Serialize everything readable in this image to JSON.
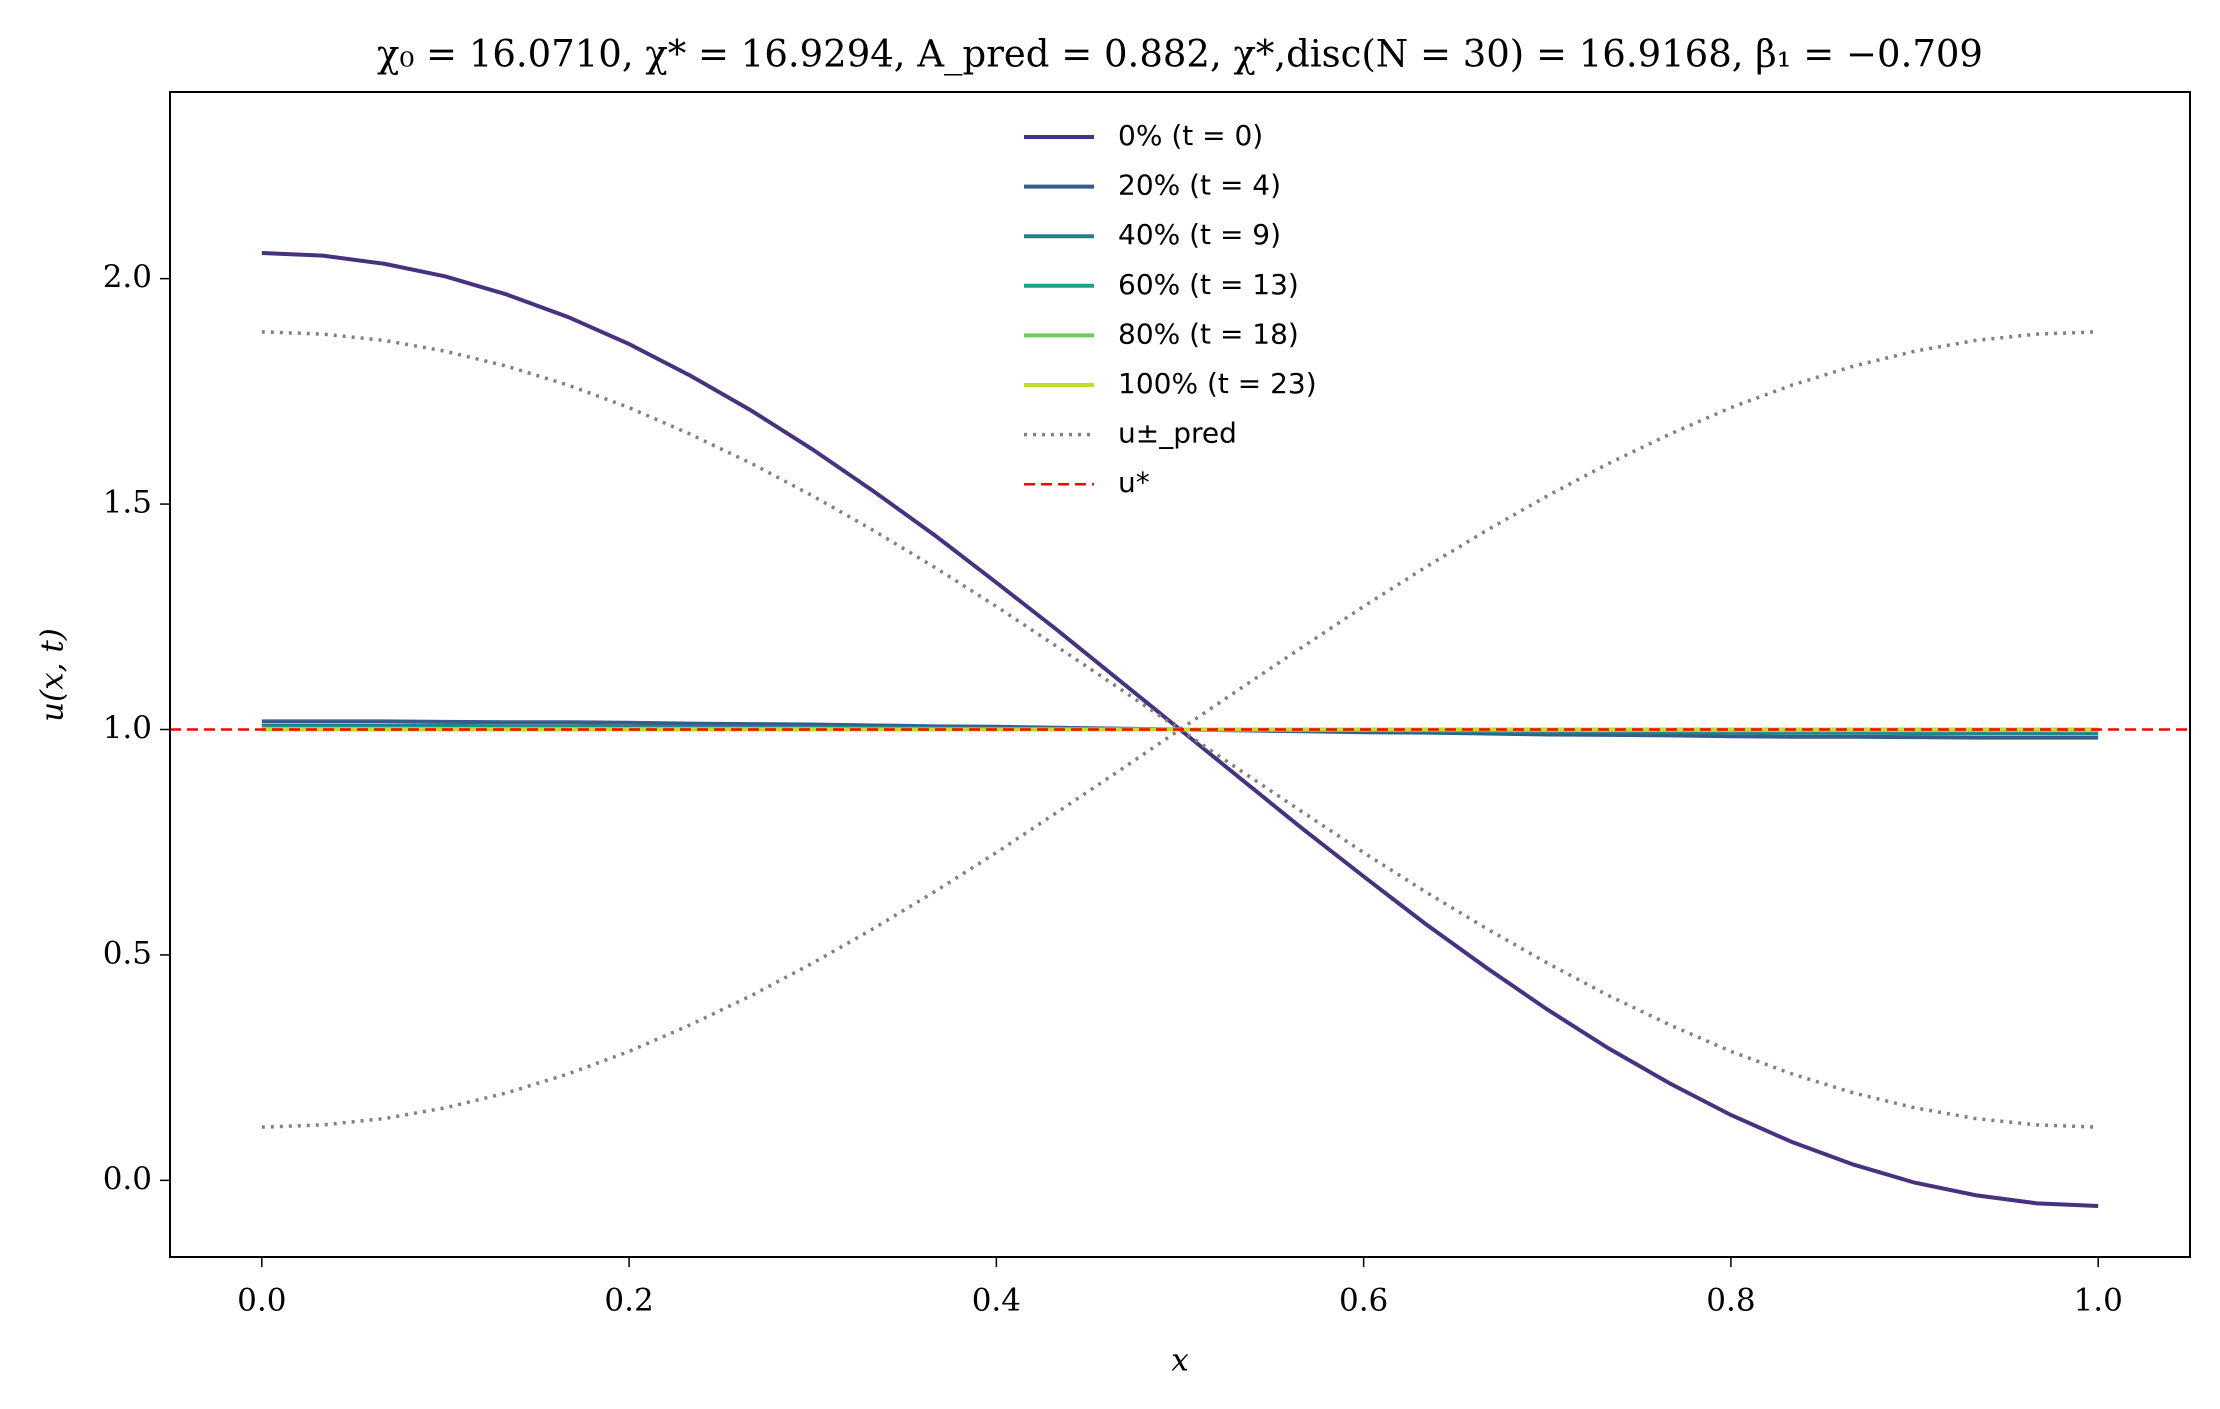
{
  "chart_data": {
    "type": "line",
    "title": "χ₀ = 16.0710,  χ* = 16.9294,  A_pred = 0.882,  χ*,disc(N = 30) = 16.9168,  β₁ = −0.709",
    "xlabel": "x",
    "ylabel": "u(x, t)",
    "x": [
      0,
      0.0333,
      0.0667,
      0.1,
      0.1333,
      0.1667,
      0.2,
      0.2333,
      0.2667,
      0.3,
      0.3333,
      0.3667,
      0.4,
      0.4333,
      0.4667,
      0.5,
      0.5333,
      0.5667,
      0.6,
      0.6333,
      0.6667,
      0.7,
      0.7333,
      0.7667,
      0.8,
      0.8333,
      0.8667,
      0.9,
      0.9333,
      0.9667,
      1
    ],
    "series": [
      {
        "name": "0% (t = 0)",
        "color": "#46327e",
        "style": "solid",
        "values": [
          2.057,
          2.051,
          2.033,
          2.005,
          1.965,
          1.915,
          1.855,
          1.785,
          1.707,
          1.621,
          1.528,
          1.43,
          1.326,
          1.22,
          1.11,
          1.0,
          0.89,
          0.78,
          0.674,
          0.57,
          0.472,
          0.379,
          0.293,
          0.215,
          0.145,
          0.085,
          0.035,
          -0.005,
          -0.033,
          -0.051,
          -0.057
        ]
      },
      {
        "name": "20% (t = 4)",
        "color": "#365c8d",
        "style": "solid",
        "values": [
          1.018,
          1.018,
          1.018,
          1.017,
          1.016,
          1.016,
          1.015,
          1.013,
          1.012,
          1.011,
          1.009,
          1.007,
          1.006,
          1.004,
          1.002,
          1.0,
          0.998,
          0.996,
          0.994,
          0.993,
          0.991,
          0.989,
          0.988,
          0.987,
          0.985,
          0.984,
          0.984,
          0.983,
          0.982,
          0.982,
          0.982
        ]
      },
      {
        "name": "40% (t = 9)",
        "color": "#277f8e",
        "style": "solid",
        "values": [
          1.008,
          1.008,
          1.008,
          1.008,
          1.007,
          1.007,
          1.006,
          1.006,
          1.005,
          1.005,
          1.004,
          1.003,
          1.002,
          1.002,
          1.001,
          1.0,
          0.999,
          0.998,
          0.998,
          0.997,
          0.996,
          0.995,
          0.995,
          0.994,
          0.994,
          0.993,
          0.993,
          0.992,
          0.992,
          0.992,
          0.992
        ]
      },
      {
        "name": "60% (t = 13)",
        "color": "#1fa187",
        "style": "solid",
        "values": [
          1.003,
          1.003,
          1.003,
          1.003,
          1.003,
          1.003,
          1.002,
          1.002,
          1.002,
          1.002,
          1.002,
          1.001,
          1.001,
          1.001,
          1.0,
          1.0,
          1.0,
          0.999,
          0.999,
          0.999,
          0.998,
          0.998,
          0.998,
          0.998,
          0.997,
          0.997,
          0.997,
          0.997,
          0.997,
          0.997,
          0.997
        ]
      },
      {
        "name": "80% (t = 18)",
        "color": "#6ccd5a",
        "style": "solid",
        "values": [
          1.001,
          1.001,
          1.001,
          1.001,
          1.001,
          1.001,
          1.001,
          1.001,
          1.001,
          1.001,
          1.0,
          1.0,
          1.0,
          1.0,
          1.0,
          1.0,
          1.0,
          1.0,
          1.0,
          1.0,
          1.0,
          0.999,
          0.999,
          0.999,
          0.999,
          0.999,
          0.999,
          0.999,
          0.999,
          0.999,
          0.999
        ]
      },
      {
        "name": "100% (t = 23)",
        "color": "#bddf26",
        "style": "solid",
        "values": [
          1,
          1,
          1,
          1,
          1,
          1,
          1,
          1,
          1,
          1,
          1,
          1,
          1,
          1,
          1,
          1,
          1,
          1,
          1,
          1,
          1,
          1,
          1,
          1,
          1,
          1,
          1,
          1,
          1,
          1,
          1
        ]
      },
      {
        "name": "u±_pred",
        "color": "#808080",
        "style": "dotted",
        "values": [
          1.882,
          1.877,
          1.863,
          1.839,
          1.806,
          1.764,
          1.714,
          1.655,
          1.59,
          1.518,
          1.441,
          1.359,
          1.273,
          1.183,
          1.092,
          1.0,
          0.908,
          0.817,
          0.727,
          0.641,
          0.559,
          0.482,
          0.41,
          0.345,
          0.286,
          0.236,
          0.194,
          0.161,
          0.137,
          0.123,
          0.118
        ]
      },
      {
        "color": "#808080",
        "style": "dotted",
        "values": [
          0.118,
          0.123,
          0.137,
          0.161,
          0.194,
          0.236,
          0.286,
          0.345,
          0.41,
          0.482,
          0.559,
          0.641,
          0.727,
          0.817,
          0.908,
          1.0,
          1.092,
          1.183,
          1.273,
          1.359,
          1.441,
          1.518,
          1.59,
          1.655,
          1.714,
          1.764,
          1.806,
          1.839,
          1.863,
          1.877,
          1.882
        ]
      }
    ],
    "hline": {
      "name": "u*",
      "value": 1,
      "color": "#ff0000",
      "style": "dashed"
    },
    "xlim": [
      -0.05,
      1.05
    ],
    "ylim": [
      -0.17,
      2.414
    ],
    "xticks": [
      {
        "value": 0,
        "label": "0.0"
      },
      0.2,
      0.4,
      0.6,
      0.8,
      {
        "value": 1,
        "label": "1.0"
      }
    ],
    "yticks": [
      {
        "value": 0,
        "label": "0.0"
      },
      0.5,
      {
        "value": 1,
        "label": "1.0"
      },
      1.5,
      {
        "value": 2,
        "label": "2.0"
      }
    ],
    "grid": false,
    "legend": "upper center"
  }
}
